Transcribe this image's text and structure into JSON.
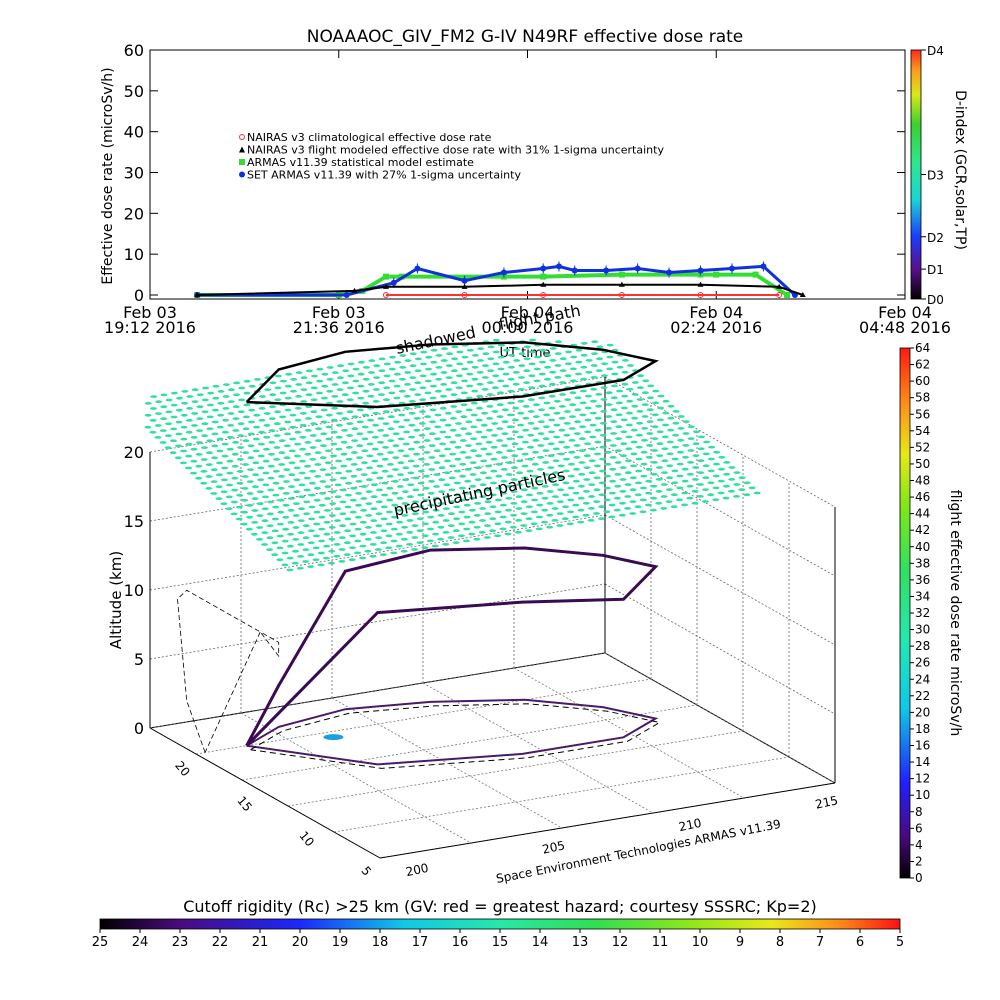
{
  "title": "NOAAAOC_GIV_FM2 G-IV    N49RF  effective dose rate",
  "timeseries": {
    "ylabel": "Effective dose rate (microSv/h)",
    "xlabel": "UT time",
    "yticks": [
      "0",
      "10",
      "20",
      "30",
      "40",
      "50",
      "60"
    ],
    "xticks": [
      {
        "line1": "Feb 03",
        "line2": "19:12 2016"
      },
      {
        "line1": "Feb 03",
        "line2": "21:36 2016"
      },
      {
        "line1": "Feb 04",
        "line2": "00:00 2016"
      },
      {
        "line1": "Feb 04",
        "line2": "02:24 2016"
      },
      {
        "line1": "Feb 04",
        "line2": "04:48 2016"
      }
    ],
    "legend": [
      {
        "label": "NAIRAS v3 climatological effective dose rate",
        "color": "#ff3030",
        "marker": "circle"
      },
      {
        "label": "NAIRAS v3 flight modeled effective dose rate with 31% 1-sigma uncertainty",
        "color": "#000000",
        "marker": "triangle"
      },
      {
        "label": "ARMAS v11.39 statistical model estimate",
        "color": "#33dd33",
        "marker": "square"
      },
      {
        "label": "SET ARMAS v11.39 with 27% 1-sigma uncertainty",
        "color": "#1030e0",
        "marker": "dot"
      }
    ],
    "dindex": {
      "label": "D-index (GCR,solar,TP)",
      "ticks": [
        "D0",
        "D1",
        "D2",
        "D3",
        "D4"
      ]
    }
  },
  "globe": {
    "zlabel": "Altitude (km)",
    "zticks": [
      "0",
      "5",
      "10",
      "15",
      "20"
    ],
    "lat_ticks": [
      "20",
      "15",
      "10",
      "5"
    ],
    "lon_ticks": [
      "200",
      "205",
      "210",
      "215"
    ],
    "annotation_precip": "precipitating particles",
    "annotation_shadow": "shadowed",
    "annotation_flight": "flight path",
    "credit": "Space Environment Technologies ARMAS v11.39",
    "colorbar_label": "flight effective dose rate microSv/h",
    "colorbar_ticks": [
      "0",
      "2",
      "4",
      "6",
      "8",
      "10",
      "12",
      "14",
      "16",
      "18",
      "20",
      "22",
      "24",
      "26",
      "28",
      "30",
      "32",
      "34",
      "36",
      "38",
      "40",
      "42",
      "44",
      "46",
      "48",
      "50",
      "52",
      "54",
      "56",
      "58",
      "60",
      "62",
      "64"
    ]
  },
  "rigidity": {
    "label": "Cutoff rigidity (Rc) >25 km (GV: red = greatest hazard; courtesy SSSRC; Kp=2)",
    "ticks": [
      "25",
      "24",
      "23",
      "22",
      "21",
      "20",
      "19",
      "18",
      "17",
      "16",
      "15",
      "14",
      "13",
      "12",
      "11",
      "10",
      "9",
      "8",
      "7",
      "6",
      "5"
    ]
  },
  "colors": {
    "armas": "#33dd33",
    "set_armas": "#1030e0",
    "nairas_clim": "#ff3030",
    "nairas_flight": "#000000",
    "precip_layer": "#30e0a0"
  },
  "chart_data": [
    {
      "type": "scatter",
      "title": "NOAAAOC_GIV_FM2 G-IV    N49RF  effective dose rate",
      "xlabel": "UT time",
      "ylabel": "Effective dose rate (microSv/h)",
      "ylim": [
        0,
        60
      ],
      "xlim_hours_from_feb03_1912": [
        0,
        9.6
      ],
      "series": [
        {
          "name": "ARMAS v11.39 statistical model estimate",
          "x": [
            0.6,
            2.4,
            2.7,
            3.0,
            3.2,
            4.5,
            5.0,
            6.0,
            7.0,
            7.2,
            7.7,
            8.1
          ],
          "y": [
            0,
            0,
            1,
            4.5,
            4.5,
            4.5,
            4.5,
            5.0,
            5.0,
            5.0,
            5.0,
            0
          ]
        },
        {
          "name": "SET ARMAS v11.39 with 27% 1-sigma uncertainty",
          "x": [
            0.6,
            2.5,
            3.1,
            3.4,
            4.0,
            4.5,
            5.0,
            5.2,
            5.4,
            5.8,
            6.2,
            6.6,
            7.0,
            7.4,
            7.8,
            8.2
          ],
          "y": [
            0,
            0,
            3,
            6.5,
            3.5,
            5.5,
            6.5,
            7.0,
            6.0,
            6.0,
            6.5,
            5.5,
            6.0,
            6.5,
            7.0,
            0
          ]
        },
        {
          "name": "NAIRAS v3 flight modeled effective dose rate with 31% 1-sigma uncertainty",
          "x": [
            0.6,
            2.6,
            3.0,
            4.0,
            5.0,
            6.0,
            7.0,
            8.0,
            8.3
          ],
          "y": [
            0,
            1,
            2.0,
            2.0,
            2.5,
            2.5,
            2.5,
            2.0,
            0
          ]
        },
        {
          "name": "NAIRAS v3 climatological effective dose rate",
          "x": [
            3.0,
            4.0,
            5.0,
            6.0,
            7.0,
            8.0
          ],
          "y": [
            0,
            0,
            0,
            0,
            0,
            0
          ]
        }
      ],
      "legend_position": "top-left"
    },
    {
      "type": "line",
      "title": "",
      "xlabel": "",
      "ylabel": "Altitude (km)",
      "zlim": [
        0,
        20
      ],
      "series": [
        {
          "name": "",
          "x": [
            200,
            202,
            205,
            208,
            211,
            213,
            214,
            212,
            208,
            203,
            200
          ],
          "y": [
            20,
            22,
            23,
            22,
            20,
            17,
            14,
            12,
            12,
            14,
            20
          ],
          "z": [
            0,
            3,
            10,
            11,
            11,
            11,
            11,
            10,
            11,
            11,
            0
          ]
        }
      ]
    }
  ]
}
